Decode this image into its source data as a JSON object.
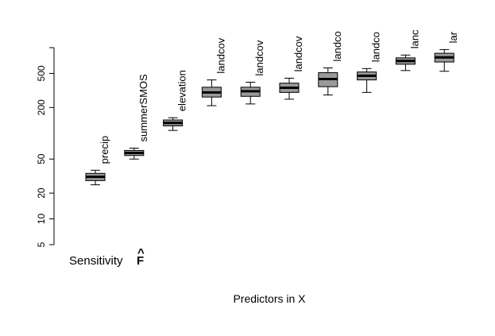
{
  "chart_data": {
    "type": "boxplot",
    "xlabel": "Predictors in X",
    "annotation": "Sensitivity",
    "annotation_symbol": "F",
    "annotation_hat": "^",
    "y_scale": "log",
    "ylim": [
      5,
      1000
    ],
    "y_ticks": [
      5,
      10,
      20,
      50,
      200,
      500
    ],
    "box_color": "#999999",
    "categories": [
      "precip",
      "summerSMOS",
      "elevation",
      "landcov",
      "landcov",
      "landcov",
      "landco",
      "landco",
      "lanc",
      "lar"
    ],
    "boxes": [
      {
        "whisker_low": 25,
        "q1": 28,
        "median": 31,
        "q3": 34,
        "whisker_high": 37
      },
      {
        "whisker_low": 50,
        "q1": 55,
        "median": 59,
        "q3": 63,
        "whisker_high": 67
      },
      {
        "whisker_low": 108,
        "q1": 122,
        "median": 132,
        "q3": 143,
        "whisker_high": 152
      },
      {
        "whisker_low": 210,
        "q1": 265,
        "median": 300,
        "q3": 345,
        "whisker_high": 420
      },
      {
        "whisker_low": 220,
        "q1": 270,
        "median": 310,
        "q3": 345,
        "whisker_high": 395
      },
      {
        "whisker_low": 250,
        "q1": 300,
        "median": 340,
        "q3": 385,
        "whisker_high": 440
      },
      {
        "whisker_low": 280,
        "q1": 350,
        "median": 430,
        "q3": 510,
        "whisker_high": 580
      },
      {
        "whisker_low": 300,
        "q1": 420,
        "median": 470,
        "q3": 520,
        "whisker_high": 570
      },
      {
        "whisker_low": 540,
        "q1": 640,
        "median": 700,
        "q3": 760,
        "whisker_high": 820
      },
      {
        "whisker_low": 530,
        "q1": 680,
        "median": 770,
        "q3": 860,
        "whisker_high": 950
      }
    ]
  }
}
